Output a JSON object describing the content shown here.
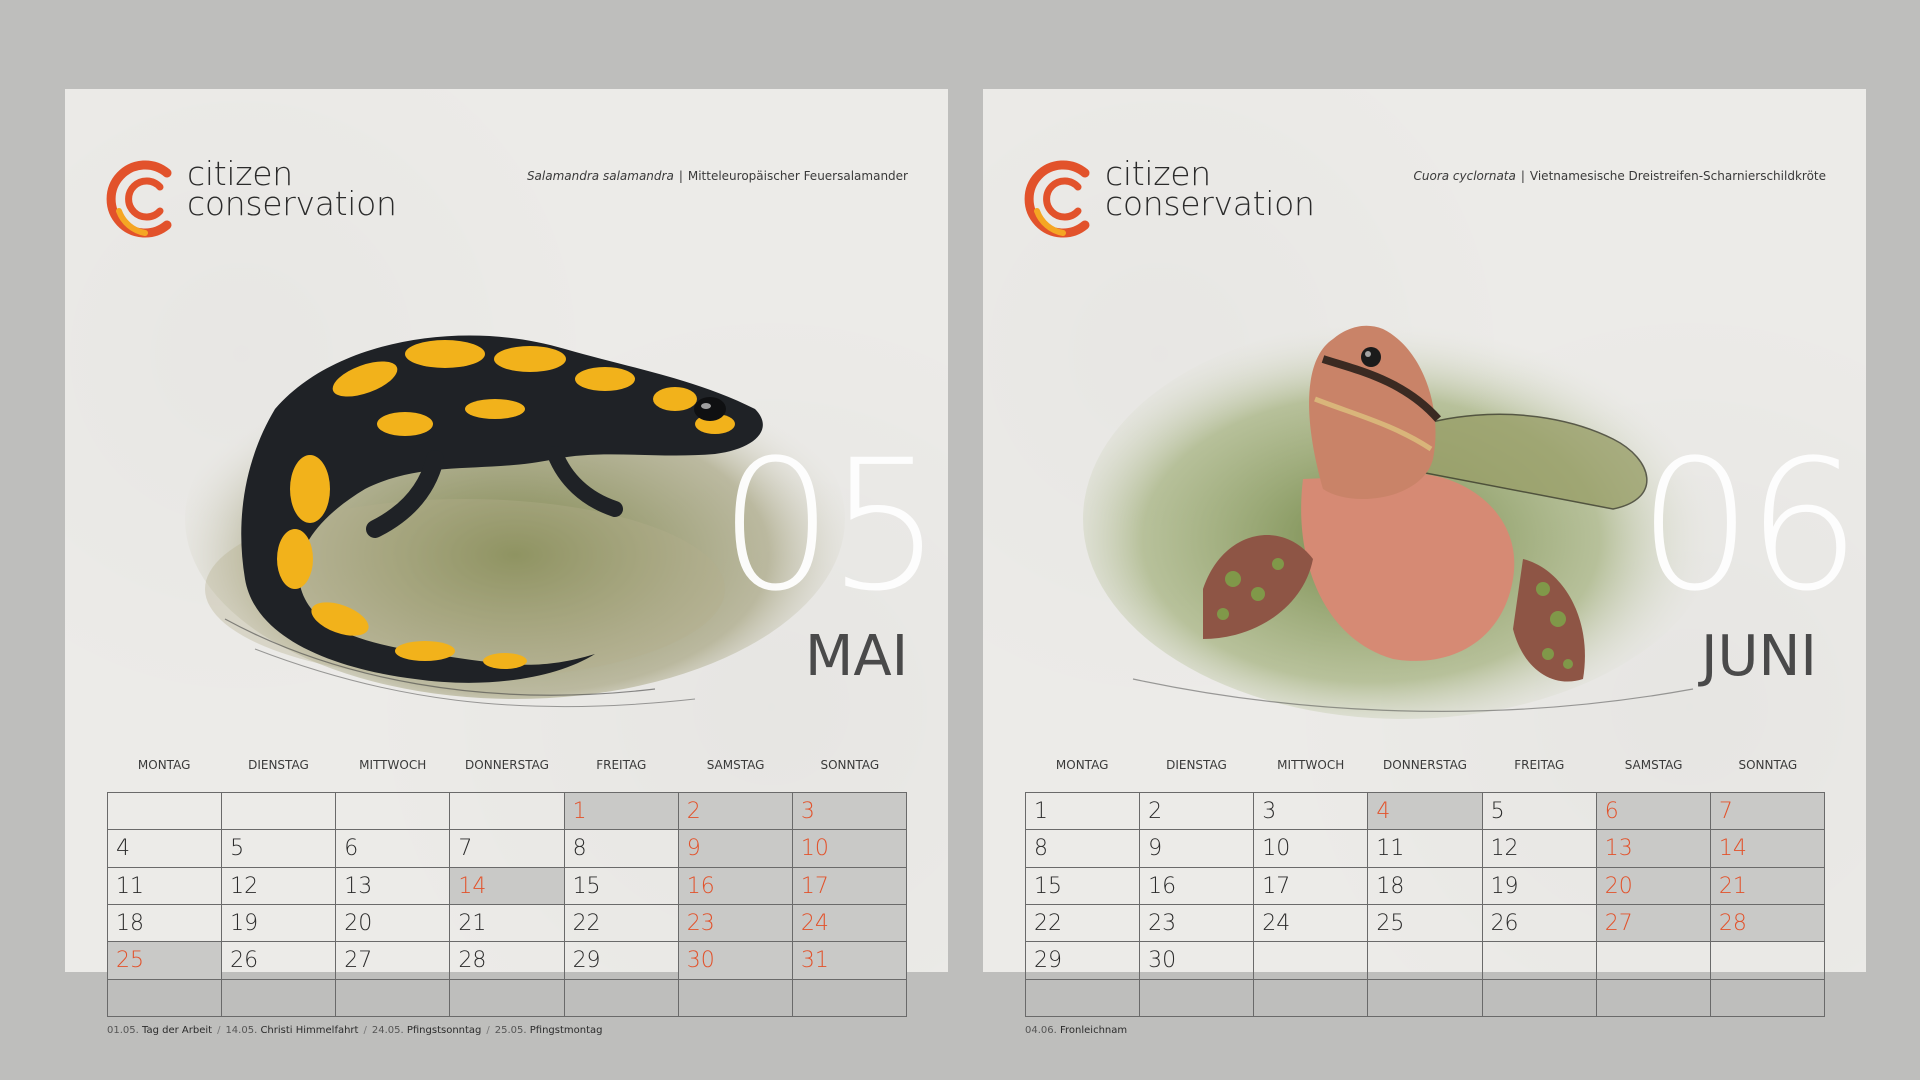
{
  "brand": {
    "line1": "citizen",
    "line2": "conservation",
    "accent": "#e2522b",
    "accent2": "#f5a623"
  },
  "weekdays": [
    "MONTAG",
    "DIENSTAG",
    "MITTWOCH",
    "DONNERSTAG",
    "FREITAG",
    "SAMSTAG",
    "SONNTAG"
  ],
  "pages": [
    {
      "species_latin": "Salamandra salamandra",
      "species_common": "Mitteleuropäischer Feuersalamander",
      "month_number": "05",
      "month_name": "MAI",
      "days": [
        [
          "",
          "",
          "",
          "",
          "1",
          "2",
          "3"
        ],
        [
          "4",
          "5",
          "6",
          "7",
          "8",
          "9",
          "10"
        ],
        [
          "11",
          "12",
          "13",
          "14",
          "15",
          "16",
          "17"
        ],
        [
          "18",
          "19",
          "20",
          "21",
          "22",
          "23",
          "24"
        ],
        [
          "25",
          "26",
          "27",
          "28",
          "29",
          "30",
          "31"
        ],
        [
          "",
          "",
          "",
          "",
          "",
          "",
          ""
        ]
      ],
      "highlighted": [
        "1",
        "2",
        "3",
        "9",
        "10",
        "14",
        "16",
        "17",
        "23",
        "24",
        "25",
        "30",
        "31"
      ],
      "red": [
        "1",
        "2",
        "3",
        "9",
        "10",
        "14",
        "16",
        "17",
        "23",
        "24",
        "25",
        "30",
        "31"
      ],
      "holidays": [
        {
          "date": "01.05.",
          "name": "Tag der Arbeit"
        },
        {
          "date": "14.05.",
          "name": "Christi Himmelfahrt"
        },
        {
          "date": "24.05.",
          "name": "Pfingstsonntag"
        },
        {
          "date": "25.05.",
          "name": "Pfingstmontag"
        }
      ]
    },
    {
      "species_latin": "Cuora cyclornata",
      "species_common": "Vietnamesische Dreistreifen-Scharnierschildkröte",
      "month_number": "06",
      "month_name": "JUNI",
      "days": [
        [
          "1",
          "2",
          "3",
          "4",
          "5",
          "6",
          "7"
        ],
        [
          "8",
          "9",
          "10",
          "11",
          "12",
          "13",
          "14"
        ],
        [
          "15",
          "16",
          "17",
          "18",
          "19",
          "20",
          "21"
        ],
        [
          "22",
          "23",
          "24",
          "25",
          "26",
          "27",
          "28"
        ],
        [
          "29",
          "30",
          "",
          "",
          "",
          "",
          ""
        ],
        [
          "",
          "",
          "",
          "",
          "",
          "",
          ""
        ]
      ],
      "highlighted": [
        "4",
        "6",
        "7",
        "13",
        "14",
        "20",
        "21",
        "27",
        "28"
      ],
      "red": [
        "4",
        "6",
        "7",
        "13",
        "14",
        "20",
        "21",
        "27",
        "28"
      ],
      "holidays": [
        {
          "date": "04.06.",
          "name": "Fronleichnam"
        }
      ]
    }
  ]
}
